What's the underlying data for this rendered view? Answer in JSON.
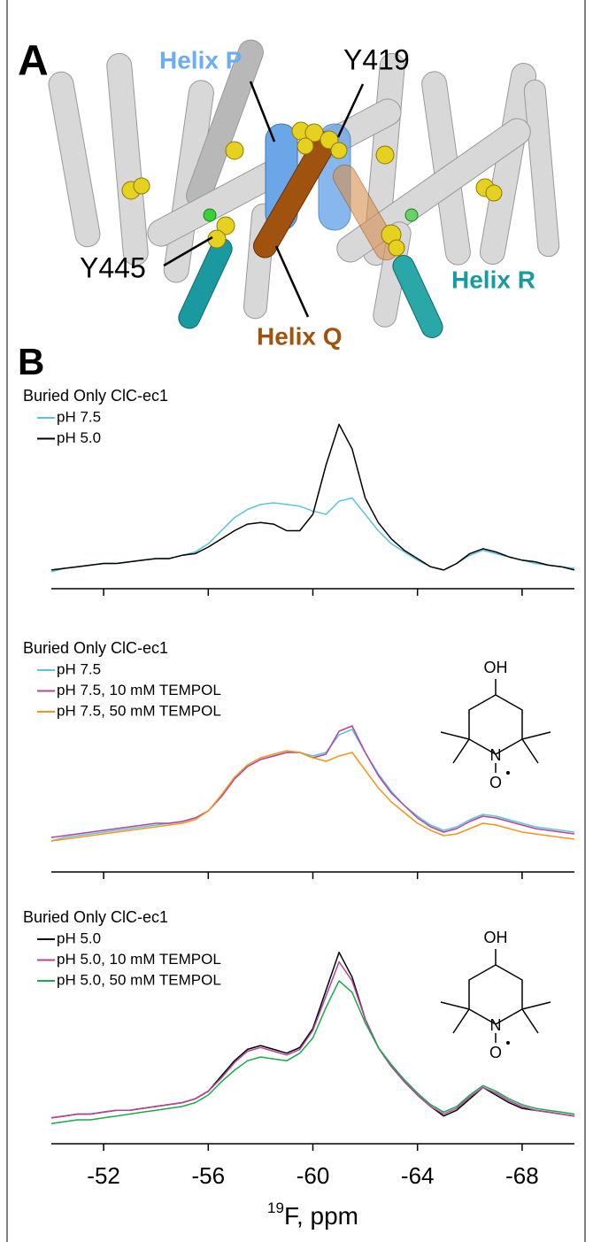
{
  "panel_a": {
    "label": "A",
    "helix_p": "Helix P",
    "y419": "Y419",
    "y445": "Y445",
    "helix_q": "Helix Q",
    "helix_r": "Helix R"
  },
  "panel_b": {
    "label": "B"
  },
  "structures": [
    {
      "oh": "OH",
      "n": "N",
      "o": "O"
    },
    {
      "oh": "OH",
      "n": "N",
      "o": "O"
    }
  ],
  "chart_data": [
    {
      "type": "line",
      "title": "Buried Only ClC-ec1",
      "xlim": [
        -50,
        -70
      ],
      "ylim": [
        0,
        1
      ],
      "xticks": [
        -52,
        -56,
        -60,
        -64,
        -68
      ],
      "tick_labels": false,
      "x": [
        -50,
        -50.5,
        -51,
        -51.5,
        -52,
        -52.5,
        -53,
        -53.5,
        -54,
        -54.5,
        -55,
        -55.5,
        -56,
        -56.5,
        -57,
        -57.5,
        -58,
        -58.5,
        -59,
        -59.5,
        -60,
        -60.5,
        -61,
        -61.5,
        -62,
        -62.5,
        -63,
        -63.5,
        -64,
        -64.5,
        -65,
        -65.5,
        -66,
        -66.5,
        -67,
        -67.5,
        -68,
        -68.5,
        -69,
        -69.5,
        -70
      ],
      "series": [
        {
          "name": "pH 7.5",
          "color": "#5bc4dc",
          "values": [
            0.05,
            0.07,
            0.08,
            0.09,
            0.1,
            0.1,
            0.11,
            0.12,
            0.13,
            0.13,
            0.15,
            0.17,
            0.22,
            0.3,
            0.38,
            0.43,
            0.46,
            0.47,
            0.46,
            0.45,
            0.42,
            0.4,
            0.48,
            0.5,
            0.4,
            0.3,
            0.22,
            0.17,
            0.12,
            0.08,
            0.06,
            0.1,
            0.15,
            0.18,
            0.16,
            0.14,
            0.12,
            0.1,
            0.09,
            0.08,
            0.07
          ]
        },
        {
          "name": "pH 5.0",
          "color": "#000000",
          "values": [
            0.06,
            0.07,
            0.08,
            0.09,
            0.1,
            0.1,
            0.11,
            0.12,
            0.13,
            0.13,
            0.15,
            0.16,
            0.2,
            0.25,
            0.3,
            0.34,
            0.35,
            0.34,
            0.3,
            0.3,
            0.4,
            0.7,
            0.95,
            0.8,
            0.5,
            0.35,
            0.25,
            0.18,
            0.13,
            0.08,
            0.06,
            0.1,
            0.16,
            0.19,
            0.17,
            0.14,
            0.12,
            0.11,
            0.09,
            0.08,
            0.06
          ]
        }
      ]
    },
    {
      "type": "line",
      "title": "Buried Only ClC-ec1",
      "xlim": [
        -50,
        -70
      ],
      "ylim": [
        0,
        1
      ],
      "xticks": [
        -52,
        -56,
        -60,
        -64,
        -68
      ],
      "tick_labels": false,
      "x": [
        -50,
        -50.5,
        -51,
        -51.5,
        -52,
        -52.5,
        -53,
        -53.5,
        -54,
        -54.5,
        -55,
        -55.5,
        -56,
        -56.5,
        -57,
        -57.5,
        -58,
        -58.5,
        -59,
        -59.5,
        -60,
        -60.5,
        -61,
        -61.5,
        -62,
        -62.5,
        -63,
        -63.5,
        -64,
        -64.5,
        -65,
        -65.5,
        -66,
        -66.5,
        -67,
        -67.5,
        -68,
        -68.5,
        -69,
        -69.5,
        -70
      ],
      "series": [
        {
          "name": "pH 7.5",
          "color": "#5bc4dc",
          "values": [
            0.1,
            0.12,
            0.13,
            0.14,
            0.15,
            0.16,
            0.17,
            0.18,
            0.19,
            0.2,
            0.21,
            0.23,
            0.27,
            0.35,
            0.45,
            0.52,
            0.56,
            0.58,
            0.6,
            0.6,
            0.58,
            0.6,
            0.7,
            0.73,
            0.6,
            0.48,
            0.38,
            0.3,
            0.24,
            0.19,
            0.16,
            0.18,
            0.22,
            0.25,
            0.24,
            0.22,
            0.2,
            0.18,
            0.17,
            0.16,
            0.15
          ]
        },
        {
          "name": "pH 7.5, 10 mM TEMPOL",
          "color": "#b8439a",
          "values": [
            0.12,
            0.13,
            0.14,
            0.15,
            0.16,
            0.17,
            0.18,
            0.19,
            0.2,
            0.2,
            0.21,
            0.23,
            0.27,
            0.35,
            0.45,
            0.52,
            0.56,
            0.58,
            0.6,
            0.6,
            0.57,
            0.59,
            0.72,
            0.75,
            0.6,
            0.47,
            0.37,
            0.3,
            0.23,
            0.18,
            0.15,
            0.17,
            0.21,
            0.24,
            0.23,
            0.21,
            0.19,
            0.17,
            0.16,
            0.15,
            0.14
          ]
        },
        {
          "name": "pH 7.5, 50 mM TEMPOL",
          "color": "#f5961e",
          "values": [
            0.1,
            0.11,
            0.12,
            0.13,
            0.14,
            0.15,
            0.16,
            0.17,
            0.18,
            0.19,
            0.2,
            0.22,
            0.27,
            0.36,
            0.46,
            0.53,
            0.57,
            0.59,
            0.61,
            0.6,
            0.57,
            0.55,
            0.58,
            0.6,
            0.5,
            0.4,
            0.32,
            0.26,
            0.2,
            0.16,
            0.13,
            0.14,
            0.17,
            0.2,
            0.19,
            0.17,
            0.15,
            0.14,
            0.13,
            0.12,
            0.11
          ]
        }
      ]
    },
    {
      "type": "line",
      "title": "Buried Only ClC-ec1",
      "xlim": [
        -50,
        -70
      ],
      "ylim": [
        0,
        1
      ],
      "xticks": [
        -52,
        -56,
        -60,
        -64,
        -68
      ],
      "tick_labels": true,
      "xlabel_sup": "19",
      "xlabel": "F, ppm",
      "x": [
        -50,
        -50.5,
        -51,
        -51.5,
        -52,
        -52.5,
        -53,
        -53.5,
        -54,
        -54.5,
        -55,
        -55.5,
        -56,
        -56.5,
        -57,
        -57.5,
        -58,
        -58.5,
        -59,
        -59.5,
        -60,
        -60.5,
        -61,
        -61.5,
        -62,
        -62.5,
        -63,
        -63.5,
        -64,
        -64.5,
        -65,
        -65.5,
        -66,
        -66.5,
        -67,
        -67.5,
        -68,
        -68.5,
        -69,
        -69.5,
        -70
      ],
      "series": [
        {
          "name": "pH 5.0",
          "color": "#000000",
          "values": [
            0.08,
            0.09,
            0.1,
            0.1,
            0.11,
            0.12,
            0.12,
            0.13,
            0.14,
            0.15,
            0.16,
            0.18,
            0.22,
            0.3,
            0.38,
            0.44,
            0.46,
            0.44,
            0.42,
            0.45,
            0.55,
            0.75,
            0.95,
            0.82,
            0.6,
            0.45,
            0.35,
            0.27,
            0.2,
            0.14,
            0.09,
            0.12,
            0.18,
            0.24,
            0.2,
            0.16,
            0.13,
            0.12,
            0.11,
            0.1,
            0.09
          ]
        },
        {
          "name": "pH 5.0, 10 mM TEMPOL",
          "color": "#b8439a",
          "values": [
            0.08,
            0.09,
            0.1,
            0.1,
            0.11,
            0.12,
            0.12,
            0.13,
            0.14,
            0.15,
            0.16,
            0.18,
            0.22,
            0.29,
            0.37,
            0.43,
            0.45,
            0.43,
            0.41,
            0.44,
            0.54,
            0.72,
            0.9,
            0.8,
            0.6,
            0.45,
            0.35,
            0.27,
            0.2,
            0.14,
            0.1,
            0.13,
            0.19,
            0.24,
            0.21,
            0.17,
            0.14,
            0.12,
            0.11,
            0.1,
            0.09
          ]
        },
        {
          "name": "pH 5.0, 50 mM TEMPOL",
          "color": "#1aaa4a",
          "values": [
            0.05,
            0.06,
            0.07,
            0.07,
            0.08,
            0.09,
            0.1,
            0.11,
            0.12,
            0.13,
            0.14,
            0.16,
            0.2,
            0.27,
            0.33,
            0.38,
            0.4,
            0.39,
            0.38,
            0.42,
            0.5,
            0.66,
            0.8,
            0.74,
            0.58,
            0.45,
            0.36,
            0.28,
            0.21,
            0.15,
            0.11,
            0.14,
            0.2,
            0.25,
            0.22,
            0.18,
            0.15,
            0.13,
            0.12,
            0.11,
            0.1
          ]
        }
      ]
    }
  ]
}
